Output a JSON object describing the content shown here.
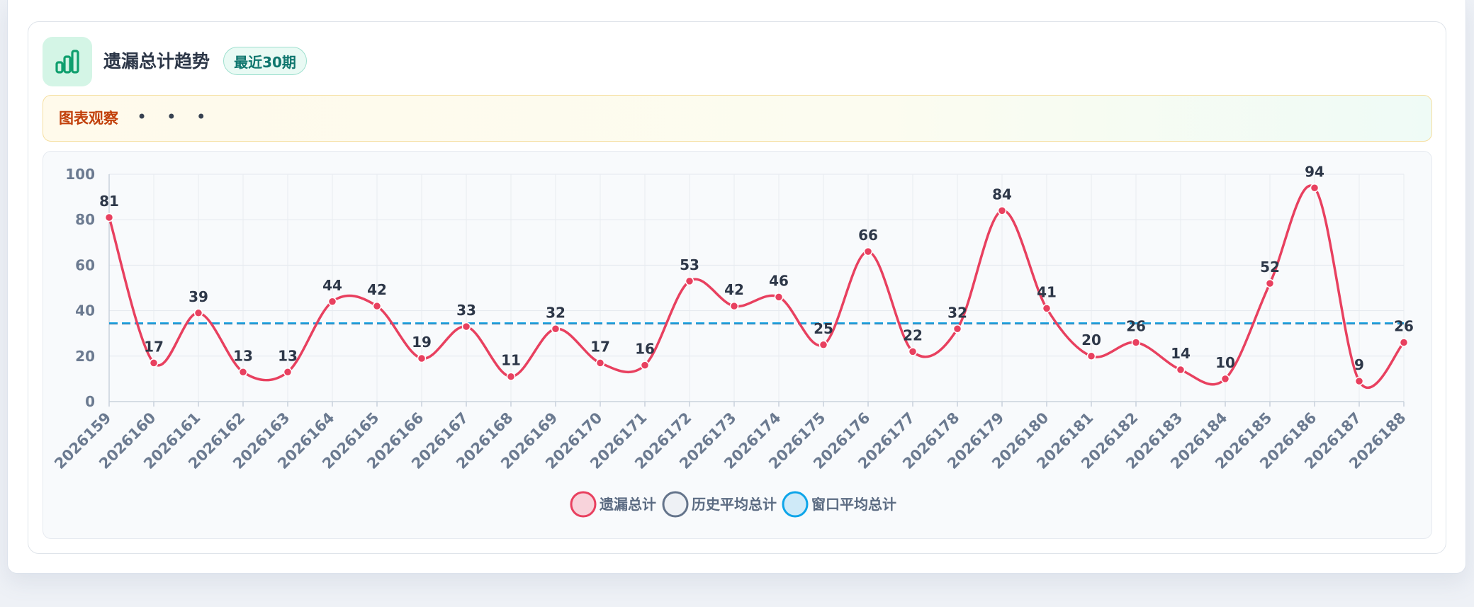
{
  "header": {
    "title": "遗漏总计趋势",
    "badge": "最近30期",
    "icon": "bar-chart-icon"
  },
  "note": {
    "label": "图表观察",
    "dots": "• • •"
  },
  "colors": {
    "series": "#e8405f",
    "history_avg": "#64748b",
    "window_avg": "#0ea5e9",
    "accent": "#10b981"
  },
  "chart_data": {
    "type": "line",
    "x": [
      "2026159",
      "2026160",
      "2026161",
      "2026162",
      "2026163",
      "2026164",
      "2026165",
      "2026166",
      "2026167",
      "2026168",
      "2026169",
      "2026170",
      "2026171",
      "2026172",
      "2026173",
      "2026174",
      "2026175",
      "2026176",
      "2026177",
      "2026178",
      "2026179",
      "2026180",
      "2026181",
      "2026182",
      "2026183",
      "2026184",
      "2026185",
      "2026186",
      "2026187",
      "2026188"
    ],
    "series": [
      {
        "name": "遗漏总计",
        "values": [
          81,
          17,
          39,
          13,
          13,
          44,
          42,
          19,
          33,
          11,
          32,
          17,
          16,
          53,
          42,
          46,
          25,
          66,
          22,
          32,
          84,
          41,
          20,
          26,
          14,
          10,
          52,
          94,
          9,
          26
        ],
        "smooth": true,
        "data_labels": true
      },
      {
        "name": "历史平均总计",
        "values": [
          34.3,
          34.3,
          34.3,
          34.3,
          34.3,
          34.3,
          34.3,
          34.3,
          34.3,
          34.3,
          34.3,
          34.3,
          34.3,
          34.3,
          34.3,
          34.3,
          34.3,
          34.3,
          34.3,
          34.3,
          34.3,
          34.3,
          34.3,
          34.3,
          34.3,
          34.3,
          34.3,
          34.3,
          34.3,
          34.3
        ],
        "dashed": true
      },
      {
        "name": "窗口平均总计",
        "values": [
          34.5,
          34.5,
          34.5,
          34.5,
          34.5,
          34.5,
          34.5,
          34.5,
          34.5,
          34.5,
          34.5,
          34.5,
          34.5,
          34.5,
          34.5,
          34.5,
          34.5,
          34.5,
          34.5,
          34.5,
          34.5,
          34.5,
          34.5,
          34.5,
          34.5,
          34.5,
          34.5,
          34.5,
          34.5,
          34.5
        ],
        "dashed": true
      }
    ],
    "yticks": [
      0,
      20,
      40,
      60,
      80,
      100
    ],
    "ylim": [
      0,
      100
    ],
    "grid": true,
    "legend": "bottom"
  }
}
